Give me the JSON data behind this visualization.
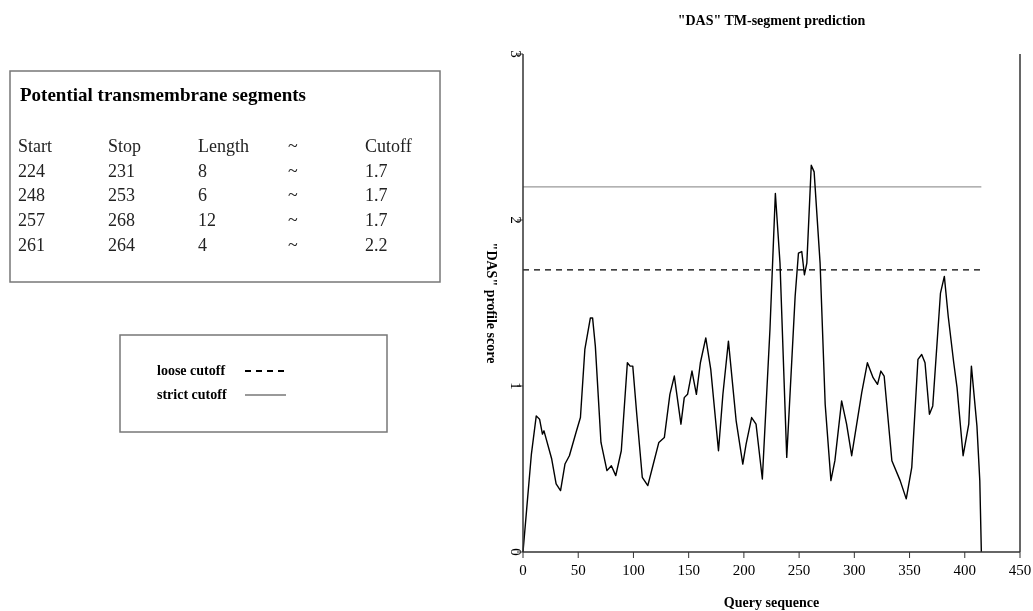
{
  "chart_data": [
    {
      "type": "other",
      "title": "Potential transmembrane segments",
      "annotations": [
        "Start",
        "Stop",
        "Length",
        "~",
        "Cutoff",
        "224",
        "231",
        "8",
        "~",
        "1.7",
        "248",
        "253",
        "6",
        "~",
        "1.7",
        "257",
        "268",
        "12",
        "~",
        "1.7",
        "261",
        "264",
        "4",
        "~",
        "2.2"
      ]
    },
    {
      "type": "line",
      "title": "\"DAS\" TM-segment prediction",
      "xlabel": "Query sequence",
      "ylabel": "\"DAS\" profile score",
      "xlim": [
        0,
        450
      ],
      "xticks": [
        0,
        50,
        100,
        150,
        200,
        250,
        300,
        350,
        400,
        450
      ],
      "ylim": [
        0,
        3
      ],
      "yticks": [
        0,
        1,
        2,
        3
      ],
      "grid": false,
      "legend": "left",
      "line_style": "solid",
      "series": [
        {
          "color": "#000000",
          "x": [
            0,
            7.6,
            12,
            15,
            17.6,
            19,
            26,
            30,
            34,
            38,
            42,
            48,
            52,
            56,
            61,
            63,
            65.5,
            70.6,
            76,
            80,
            84,
            89,
            94.5,
            97,
            99.4,
            103,
            108,
            113,
            118,
            123,
            128,
            133,
            137,
            143,
            146,
            149,
            153,
            157,
            160.6,
            165.5,
            170,
            177,
            181,
            186,
            193,
            199,
            202,
            207,
            211,
            216.7,
            223.6,
            228.5,
            232.7,
            238.8,
            246.4,
            249.4,
            252.4,
            254.8,
            257,
            261,
            263.6,
            269,
            273.6,
            278.8,
            282.4,
            288.5,
            293,
            297.6,
            306.7,
            311.8,
            317,
            321,
            324,
            327,
            334,
            341.5,
            347,
            352,
            357.6,
            361,
            364,
            368,
            371,
            378,
            381.5,
            385,
            390,
            393,
            398.5,
            403.6,
            406,
            411,
            413.6,
            415
          ],
          "values": [
            0,
            0.59,
            0.82,
            0.8,
            0.71,
            0.73,
            0.56,
            0.41,
            0.37,
            0.53,
            0.58,
            0.72,
            0.81,
            1.22,
            1.41,
            1.41,
            1.24,
            0.66,
            0.49,
            0.52,
            0.46,
            0.61,
            1.14,
            1.12,
            1.12,
            0.83,
            0.45,
            0.4,
            0.53,
            0.66,
            0.69,
            0.95,
            1.06,
            0.77,
            0.93,
            0.95,
            1.09,
            0.95,
            1.14,
            1.29,
            1.1,
            0.61,
            0.95,
            1.27,
            0.79,
            0.53,
            0.65,
            0.81,
            0.77,
            0.44,
            1.34,
            2.16,
            1.74,
            0.57,
            1.54,
            1.8,
            1.81,
            1.67,
            1.74,
            2.33,
            2.29,
            1.74,
            0.89,
            0.43,
            0.55,
            0.91,
            0.77,
            0.58,
            0.96,
            1.14,
            1.05,
            1.01,
            1.09,
            1.06,
            0.55,
            0.43,
            0.32,
            0.51,
            1.16,
            1.19,
            1.14,
            0.83,
            0.88,
            1.56,
            1.66,
            1.42,
            1.14,
            0.99,
            0.58,
            0.77,
            1.12,
            0.76,
            0.43,
            0
          ]
        }
      ],
      "ref_lines": [
        {
          "axis": "y",
          "value": 1.7,
          "label": "loose cutoff",
          "color": "#000000",
          "line_style": "dashed"
        },
        {
          "axis": "y",
          "value": 2.2,
          "label": "strict cutoff",
          "color": "#999999",
          "line_style": "solid"
        }
      ]
    }
  ]
}
